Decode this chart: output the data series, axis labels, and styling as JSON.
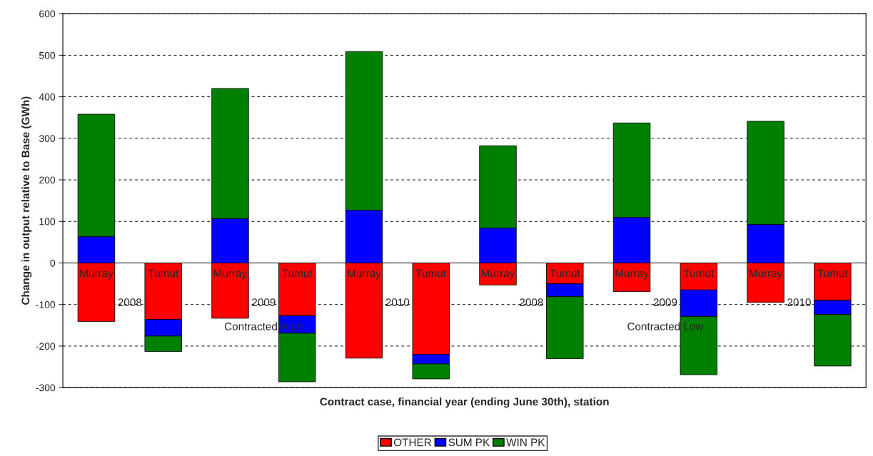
{
  "chart_data": {
    "type": "bar",
    "stacked": true,
    "xlabel": "Contract case, financial year (ending June 30th), station",
    "ylabel": "Change in output relative to Base (GWh)",
    "categories": [
      "Murray",
      "Tumut",
      "Murray",
      "Tumut",
      "Murray",
      "Tumut",
      "Murray",
      "Tumut",
      "Murray",
      "Tumut",
      "Murray",
      "Tumut"
    ],
    "series": [
      {
        "name": "OTHER",
        "color": "#ff0000",
        "values": [
          -141,
          -136,
          -133,
          -127,
          -229,
          -220,
          -53,
          -50,
          -69,
          -65,
          -95,
          -90
        ]
      },
      {
        "name": "SUM PK",
        "color": "#0000ff",
        "values": [
          64,
          -40,
          107,
          -42,
          127,
          -23,
          84,
          -31,
          110,
          -64,
          93,
          -34
        ]
      },
      {
        "name": "WIN PK",
        "color": "#008000",
        "values": [
          294,
          -37,
          313,
          -117,
          382,
          -36,
          198,
          -149,
          227,
          -140,
          248,
          -124
        ]
      }
    ],
    "annotations": [
      "2008",
      "2009",
      "2010",
      "2008",
      "2009",
      "2010",
      "Contracted High",
      "Contracted Low"
    ],
    "ylim": [
      -300,
      600
    ],
    "yticks": [
      -300,
      -200,
      -100,
      0,
      100,
      200,
      300,
      400,
      500,
      600
    ],
    "grid": "y",
    "legend": "bottom"
  }
}
